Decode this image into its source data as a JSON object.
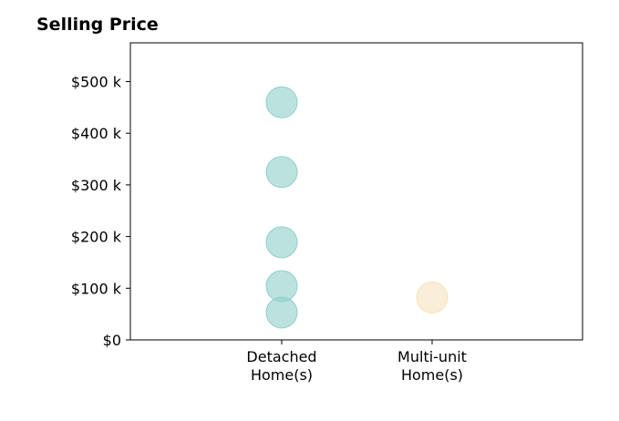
{
  "chart_data": {
    "type": "scatter",
    "title": "Selling Price",
    "xlabel": "",
    "ylabel": "",
    "categories": [
      [
        "Detached",
        "Home(s)"
      ],
      [
        "Multi-unit",
        "Home(s)"
      ]
    ],
    "y_ticks": [
      0,
      100,
      200,
      300,
      400,
      500
    ],
    "y_tick_labels": [
      "$0",
      "$100 k",
      "$200 k",
      "$300 k",
      "$400 k",
      "$500 k"
    ],
    "ylim": [
      0,
      575
    ],
    "grid": false,
    "series": [
      {
        "category_index": 0,
        "color": "#8fcfc9",
        "values": [
          53,
          104,
          189,
          325,
          460
        ]
      },
      {
        "category_index": 1,
        "color": "#f5e3bd",
        "values": [
          82
        ]
      }
    ]
  }
}
